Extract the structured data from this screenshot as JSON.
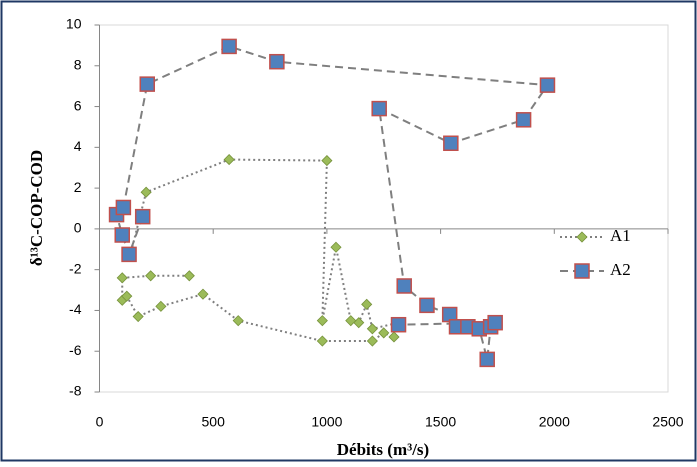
{
  "chart_data": {
    "type": "scatter-line",
    "x_label": "Débits (m³/s)",
    "y_label": "δ¹³C-COP-COD",
    "xlim": [
      0,
      2500
    ],
    "xticks": [
      0,
      500,
      1000,
      1500,
      2000,
      2500
    ],
    "ylim": [
      -8,
      10
    ],
    "yticks": [
      -8,
      -6,
      -4,
      -2,
      0,
      2,
      4,
      6,
      8,
      10
    ],
    "legend": "right",
    "series": [
      {
        "name": "A1",
        "color": "#9bbb59",
        "line_color": "#7f7f7f",
        "line_style": "dotted",
        "marker": "diamond",
        "x": [
          395,
          225,
          100,
          100,
          120,
          170,
          270,
          455,
          610,
          980,
          1200,
          1250,
          1295,
          1315,
          1200,
          1175,
          1140,
          1105,
          1040,
          980,
          1000,
          570,
          205,
          135
        ],
        "values": [
          -2.3,
          -2.3,
          -2.4,
          -3.5,
          -3.3,
          -4.3,
          -3.8,
          -3.2,
          -4.5,
          -5.5,
          -5.5,
          -5.1,
          -5.3,
          -4.6,
          -4.9,
          -3.7,
          -4.6,
          -4.5,
          -0.9,
          -4.5,
          3.35,
          3.4,
          1.8,
          -1.3
        ]
      },
      {
        "name": "A2",
        "color": "#4f81bd",
        "edge_color": "#c0504d",
        "line_color": "#7f7f7f",
        "line_style": "dashed",
        "marker": "square",
        "x": [
          190,
          130,
          100,
          75,
          105,
          210,
          570,
          780,
          1970,
          1865,
          1545,
          1230,
          1340,
          1440,
          1540,
          1570,
          1620,
          1670,
          1705,
          1720,
          1740,
          1315
        ],
        "values": [
          0.6,
          -1.25,
          -0.3,
          0.7,
          1.05,
          7.1,
          8.95,
          8.2,
          7.05,
          5.35,
          4.2,
          5.9,
          -2.8,
          -3.75,
          -4.2,
          -4.8,
          -4.8,
          -4.9,
          -6.4,
          -4.8,
          -4.6,
          -4.7
        ]
      }
    ]
  }
}
